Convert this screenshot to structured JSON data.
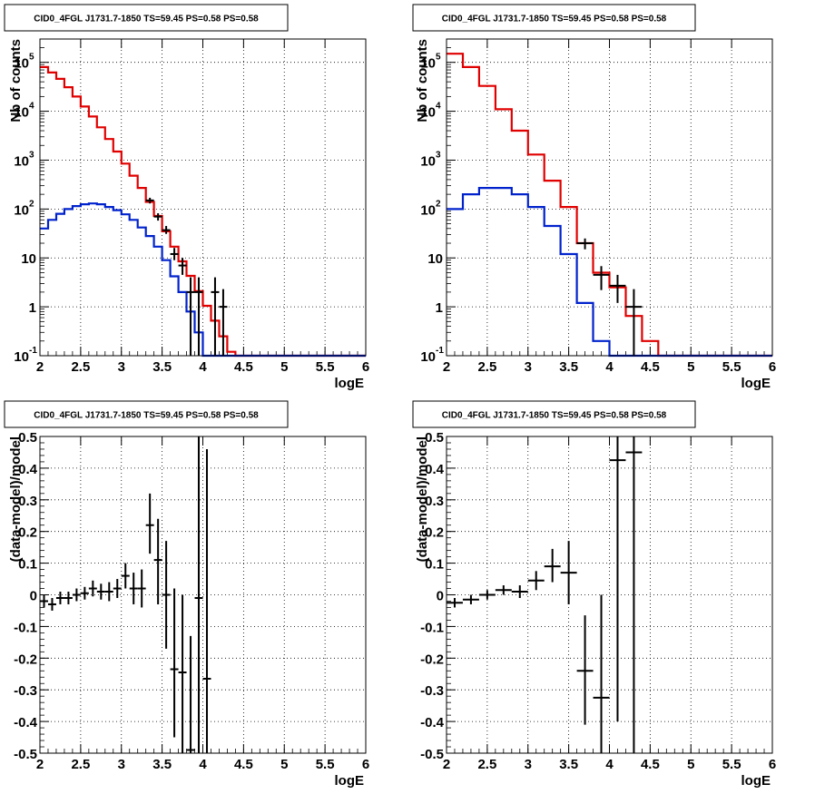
{
  "colors": {
    "data": "#000000",
    "total_model": "#e00000",
    "source_model": "#0022cc",
    "grid": "#000000"
  },
  "chart_data": [
    {
      "type": "line",
      "title": "CID0_4FGL J1731.7-1850 TS=59.45 PS=0.58 PS=0.58",
      "xlabel": "logE",
      "ylabel": "Nb of counts",
      "xlim": [
        2,
        6
      ],
      "ylim": [
        0.1,
        300000
      ],
      "yscale": "log",
      "grid": true,
      "xticks": [
        "2",
        "2.5",
        "3",
        "3.5",
        "4",
        "4.5",
        "5",
        "5.5",
        "6"
      ],
      "yticks": [
        {
          "value": 0.1,
          "base": "10",
          "exp": "-1"
        },
        {
          "value": 1,
          "base": "1",
          "exp": ""
        },
        {
          "value": 10,
          "base": "10",
          "exp": ""
        },
        {
          "value": 100,
          "base": "10",
          "exp": "2"
        },
        {
          "value": 1000,
          "base": "10",
          "exp": "3"
        },
        {
          "value": 10000,
          "base": "10",
          "exp": "4"
        },
        {
          "value": 100000,
          "base": "10",
          "exp": "5"
        }
      ],
      "bin_edges": [
        2,
        2.1,
        2.2,
        2.3,
        2.4,
        2.5,
        2.6,
        2.7,
        2.8,
        2.9,
        3.0,
        3.1,
        3.2,
        3.3,
        3.4,
        3.5,
        3.6,
        3.7,
        3.8,
        3.9,
        4.0,
        4.1,
        4.2,
        4.3,
        4.4,
        4.5,
        4.6,
        4.7,
        4.8,
        4.9,
        5.0,
        5.1,
        5.2,
        5.3,
        5.4,
        5.5,
        5.6,
        5.7,
        5.8,
        5.9,
        6.0
      ],
      "series": [
        {
          "values": [
            80000,
            62000,
            46000,
            31000,
            20000,
            12500,
            7800,
            4700,
            2700,
            1500,
            850,
            480,
            270,
            140,
            72,
            35,
            17,
            8.5,
            4.3,
            2.1,
            1.05,
            0.52,
            0.25,
            0.12,
            0.1,
            0.1,
            0.1,
            0.1,
            0.1,
            0.1,
            0.1,
            0.1,
            0.1,
            0.1,
            0.1,
            0.1,
            0.1,
            0.1,
            0.1,
            0.1
          ]
        },
        {
          "values": [
            40,
            60,
            80,
            100,
            115,
            125,
            130,
            125,
            110,
            95,
            78,
            60,
            42,
            28,
            17,
            9,
            4.2,
            2,
            0.8,
            0.3,
            0.1,
            0.1,
            0.1,
            0.1,
            0.1,
            0.1,
            0.1,
            0.1,
            0.1,
            0.1,
            0.1,
            0.1,
            0.1,
            0.1,
            0.1,
            0.1,
            0.1,
            0.1,
            0.1,
            0.1
          ]
        }
      ],
      "points": [
        {
          "x": 3.35,
          "y": 150,
          "ylo": 130,
          "yhi": 170
        },
        {
          "x": 3.45,
          "y": 70,
          "ylo": 58,
          "yhi": 82
        },
        {
          "x": 3.55,
          "y": 37,
          "ylo": 31,
          "yhi": 45
        },
        {
          "x": 3.65,
          "y": 12,
          "ylo": 9,
          "yhi": 16
        },
        {
          "x": 3.75,
          "y": 7,
          "ylo": 4.5,
          "yhi": 10
        },
        {
          "x": 3.85,
          "y": 2,
          "ylo": 0.1,
          "yhi": 4
        },
        {
          "x": 3.95,
          "y": 2,
          "ylo": 0.1,
          "yhi": 4
        },
        {
          "x": 4.15,
          "y": 2,
          "ylo": 0.1,
          "yhi": 4
        },
        {
          "x": 4.25,
          "y": 1,
          "ylo": 0.1,
          "yhi": 2.3
        }
      ]
    },
    {
      "type": "line",
      "title": "CID0_4FGL J1731.7-1850 TS=59.45 PS=0.58 PS=0.58",
      "xlabel": "logE",
      "ylabel": "Nb of counts",
      "xlim": [
        2,
        6
      ],
      "ylim": [
        0.1,
        300000
      ],
      "yscale": "log",
      "grid": true,
      "xticks": [
        "2",
        "2.5",
        "3",
        "3.5",
        "4",
        "4.5",
        "5",
        "5.5",
        "6"
      ],
      "yticks": [
        {
          "value": 0.1,
          "base": "10",
          "exp": "-1"
        },
        {
          "value": 1,
          "base": "1",
          "exp": ""
        },
        {
          "value": 10,
          "base": "10",
          "exp": ""
        },
        {
          "value": 100,
          "base": "10",
          "exp": "2"
        },
        {
          "value": 1000,
          "base": "10",
          "exp": "3"
        },
        {
          "value": 10000,
          "base": "10",
          "exp": "4"
        },
        {
          "value": 100000,
          "base": "10",
          "exp": "5"
        }
      ],
      "bin_edges": [
        2,
        2.2,
        2.4,
        2.6,
        2.8,
        3.0,
        3.2,
        3.4,
        3.6,
        3.8,
        4.0,
        4.2,
        4.4,
        4.6,
        4.8,
        5.0,
        5.2,
        5.4,
        5.6,
        5.8,
        6.0
      ],
      "series": [
        {
          "values": [
            150000,
            80000,
            33000,
            11000,
            4000,
            1300,
            380,
            110,
            20,
            5,
            2.5,
            0.65,
            0.2,
            0.1,
            0.1,
            0.1,
            0.1,
            0.1,
            0.1,
            0.1
          ]
        },
        {
          "values": [
            100,
            200,
            270,
            270,
            200,
            110,
            45,
            12,
            1.2,
            0.2,
            0.1,
            0.1,
            0.1,
            0.1,
            0.1,
            0.1,
            0.1,
            0.1,
            0.1,
            0.1
          ]
        }
      ],
      "points": [
        {
          "x": 3.7,
          "y": 20,
          "ylo": 15,
          "yhi": 25
        },
        {
          "x": 3.9,
          "y": 4.5,
          "ylo": 2.2,
          "yhi": 6.8
        },
        {
          "x": 4.1,
          "y": 2.7,
          "ylo": 1.2,
          "yhi": 4.5
        },
        {
          "x": 4.3,
          "y": 1,
          "ylo": 0.1,
          "yhi": 2.3
        }
      ]
    },
    {
      "type": "scatter",
      "title": "CID0_4FGL J1731.7-1850 TS=59.45 PS=0.58 PS=0.58",
      "xlabel": "logE",
      "ylabel": "(data-model)/model",
      "xlim": [
        2,
        6
      ],
      "ylim": [
        -0.5,
        0.5
      ],
      "grid": true,
      "xticks": [
        "2",
        "2.5",
        "3",
        "3.5",
        "4",
        "4.5",
        "5",
        "5.5",
        "6"
      ],
      "yticks": [
        "-0.5",
        "-0.4",
        "-0.3",
        "-0.2",
        "-0.1",
        "0",
        "0.1",
        "0.2",
        "0.3",
        "0.4",
        "0.5"
      ],
      "half_width": 0.05,
      "points": [
        {
          "x": 2.05,
          "y": -0.02,
          "ylo": -0.04,
          "yhi": 0.0
        },
        {
          "x": 2.15,
          "y": -0.03,
          "ylo": -0.05,
          "yhi": -0.01
        },
        {
          "x": 2.25,
          "y": -0.01,
          "ylo": -0.03,
          "yhi": 0.01
        },
        {
          "x": 2.35,
          "y": -0.01,
          "ylo": -0.03,
          "yhi": 0.01
        },
        {
          "x": 2.45,
          "y": 0.0,
          "ylo": -0.02,
          "yhi": 0.02
        },
        {
          "x": 2.55,
          "y": 0.005,
          "ylo": -0.015,
          "yhi": 0.025
        },
        {
          "x": 2.65,
          "y": 0.02,
          "ylo": -0.005,
          "yhi": 0.045
        },
        {
          "x": 2.75,
          "y": 0.01,
          "ylo": -0.015,
          "yhi": 0.035
        },
        {
          "x": 2.85,
          "y": 0.01,
          "ylo": -0.02,
          "yhi": 0.04
        },
        {
          "x": 2.95,
          "y": 0.02,
          "ylo": -0.01,
          "yhi": 0.05
        },
        {
          "x": 3.05,
          "y": 0.06,
          "ylo": 0.02,
          "yhi": 0.1
        },
        {
          "x": 3.15,
          "y": 0.02,
          "ylo": -0.03,
          "yhi": 0.07
        },
        {
          "x": 3.25,
          "y": 0.02,
          "ylo": -0.04,
          "yhi": 0.08
        },
        {
          "x": 3.35,
          "y": 0.22,
          "ylo": 0.13,
          "yhi": 0.32
        },
        {
          "x": 3.45,
          "y": 0.11,
          "ylo": -0.03,
          "yhi": 0.24
        },
        {
          "x": 3.55,
          "y": 0.0,
          "ylo": -0.17,
          "yhi": 0.17
        },
        {
          "x": 3.65,
          "y": -0.235,
          "ylo": -0.45,
          "yhi": 0.02
        },
        {
          "x": 3.75,
          "y": -0.245,
          "ylo": -0.5,
          "yhi": 0.0
        },
        {
          "x": 3.85,
          "y": -0.49,
          "ylo": -0.5,
          "yhi": -0.13
        },
        {
          "x": 3.95,
          "y": -0.01,
          "ylo": -0.5,
          "yhi": 0.5
        },
        {
          "x": 4.05,
          "y": -0.265,
          "ylo": -0.5,
          "yhi": 0.46
        }
      ]
    },
    {
      "type": "scatter",
      "title": "CID0_4FGL J1731.7-1850 TS=59.45 PS=0.58 PS=0.58",
      "xlabel": "logE",
      "ylabel": "(data-model)/model",
      "xlim": [
        2,
        6
      ],
      "ylim": [
        -0.5,
        0.5
      ],
      "grid": true,
      "xticks": [
        "2",
        "2.5",
        "3",
        "3.5",
        "4",
        "4.5",
        "5",
        "5.5",
        "6"
      ],
      "yticks": [
        "-0.5",
        "-0.4",
        "-0.3",
        "-0.2",
        "-0.1",
        "0",
        "0.1",
        "0.2",
        "0.3",
        "0.4",
        "0.5"
      ],
      "half_width": 0.1,
      "points": [
        {
          "x": 2.1,
          "y": -0.025,
          "ylo": -0.04,
          "yhi": -0.01
        },
        {
          "x": 2.3,
          "y": -0.015,
          "ylo": -0.03,
          "yhi": 0.0
        },
        {
          "x": 2.5,
          "y": 0.0,
          "ylo": -0.015,
          "yhi": 0.015
        },
        {
          "x": 2.7,
          "y": 0.015,
          "ylo": 0.0,
          "yhi": 0.03
        },
        {
          "x": 2.9,
          "y": 0.01,
          "ylo": -0.01,
          "yhi": 0.03
        },
        {
          "x": 3.1,
          "y": 0.045,
          "ylo": 0.015,
          "yhi": 0.075
        },
        {
          "x": 3.3,
          "y": 0.09,
          "ylo": 0.04,
          "yhi": 0.145
        },
        {
          "x": 3.5,
          "y": 0.07,
          "ylo": -0.03,
          "yhi": 0.17
        },
        {
          "x": 3.7,
          "y": -0.24,
          "ylo": -0.41,
          "yhi": -0.065
        },
        {
          "x": 3.9,
          "y": -0.325,
          "ylo": -0.5,
          "yhi": 0.0
        },
        {
          "x": 4.1,
          "y": 0.425,
          "ylo": -0.4,
          "yhi": 0.5
        },
        {
          "x": 4.3,
          "y": 0.45,
          "ylo": -0.5,
          "yhi": 0.5
        }
      ]
    }
  ]
}
